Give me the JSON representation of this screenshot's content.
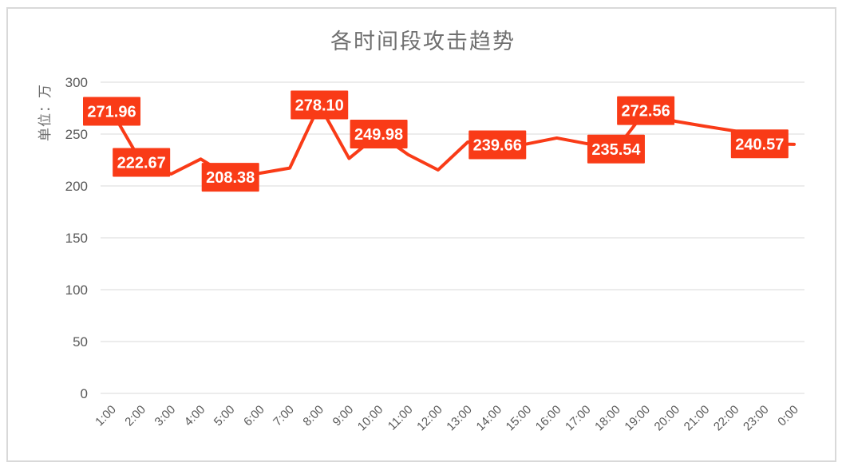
{
  "chart_data": {
    "type": "line",
    "title": "各时间段攻击趋势",
    "ylabel": "单位：万",
    "xlabel": "",
    "ylim": [
      0,
      300
    ],
    "yticks": [
      0,
      50,
      100,
      150,
      200,
      250,
      300
    ],
    "grid": true,
    "legend": "none",
    "categories": [
      "1:00",
      "2:00",
      "3:00",
      "4:00",
      "5:00",
      "6:00",
      "7:00",
      "8:00",
      "9:00",
      "10:00",
      "11:00",
      "12:00",
      "13:00",
      "14:00",
      "15:00",
      "16:00",
      "17:00",
      "18:00",
      "19:00",
      "20:00",
      "21:00",
      "22:00",
      "23:00",
      "0:00"
    ],
    "values": [
      271.96,
      222.67,
      211.5,
      225.9,
      208.38,
      212.3,
      217.2,
      278.1,
      226.5,
      249.98,
      230.0,
      215.4,
      242.3,
      239.66,
      240.5,
      246.2,
      240.8,
      235.54,
      272.56,
      262.3,
      257.5,
      253.0,
      240.57,
      240.1
    ],
    "data_labels": [
      "271.96",
      "222.67",
      null,
      null,
      "208.38",
      null,
      null,
      "278.10",
      null,
      "249.98",
      null,
      null,
      null,
      "239.66",
      null,
      null,
      null,
      "235.54",
      "272.56",
      null,
      null,
      null,
      "240.57",
      null
    ],
    "label_x_offsets": {
      "22": -6
    },
    "line_color": "#f93b17",
    "label_bg_color": "#f93b17",
    "label_text_color": "#ffffff",
    "axis_text_color": "#595959",
    "title_color": "#6f6f6f",
    "gridline_color": "#d9d9d9",
    "card_border_color": "#d9d9d9"
  }
}
